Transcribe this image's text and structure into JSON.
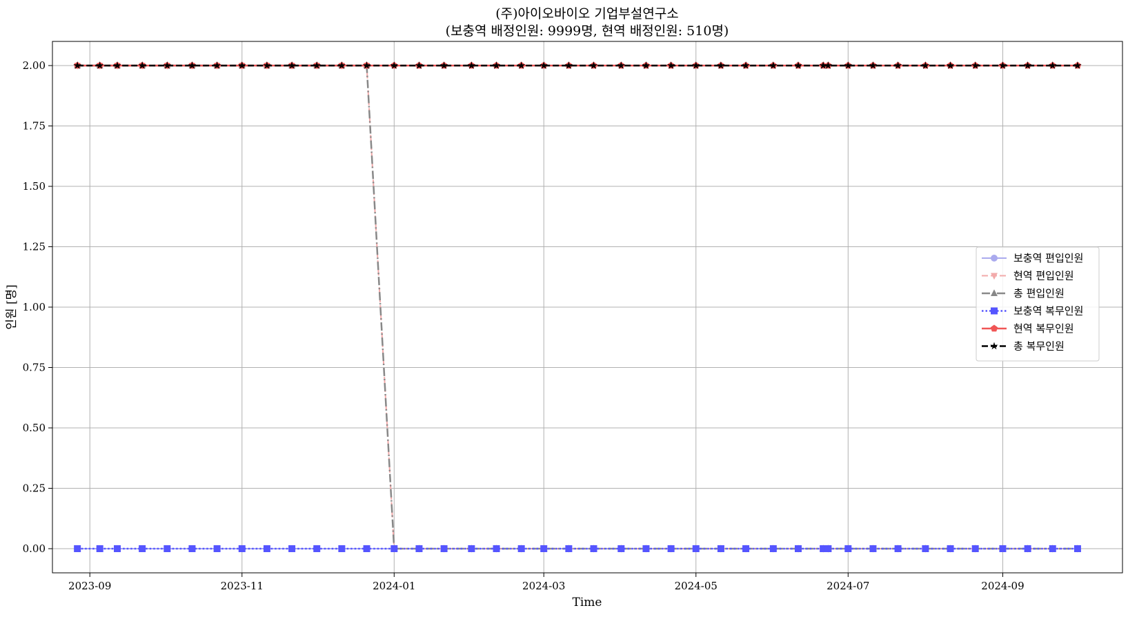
{
  "chart_data": {
    "type": "line",
    "title": "(주)아이오바이오 기업부설연구소",
    "subtitle": "(보충역 배정인원: 9999명, 현역 배정인원: 510명)",
    "xlabel": "Time",
    "ylabel": "인원 [명]",
    "x_ticks": [
      "2023-09",
      "2023-11",
      "2024-01",
      "2024-03",
      "2024-05",
      "2024-07",
      "2024-09"
    ],
    "y_ticks": [
      "0.00",
      "0.25",
      "0.50",
      "0.75",
      "1.00",
      "1.25",
      "1.50",
      "1.75",
      "2.00"
    ],
    "xlim": [
      "2023-08-17",
      "2024-10-19"
    ],
    "ylim": [
      -0.1,
      2.1
    ],
    "grid": true,
    "legend_position": "center-right",
    "x": [
      "2023-08-27",
      "2023-09-05",
      "2023-09-12",
      "2023-09-22",
      "2023-10-02",
      "2023-10-12",
      "2023-10-22",
      "2023-11-01",
      "2023-11-11",
      "2023-11-21",
      "2023-12-01",
      "2023-12-11",
      "2023-12-21",
      "2024-01-01",
      "2024-01-11",
      "2024-01-21",
      "2024-02-01",
      "2024-02-11",
      "2024-02-21",
      "2024-03-01",
      "2024-03-11",
      "2024-03-21",
      "2024-04-01",
      "2024-04-11",
      "2024-04-21",
      "2024-05-01",
      "2024-05-11",
      "2024-05-21",
      "2024-06-01",
      "2024-06-11",
      "2024-06-21",
      "2024-06-23",
      "2024-07-01",
      "2024-07-11",
      "2024-07-21",
      "2024-08-01",
      "2024-08-11",
      "2024-08-21",
      "2024-09-01",
      "2024-09-11",
      "2024-09-21",
      "2024-10-01"
    ],
    "series": [
      {
        "name": "보충역 편입인원",
        "color": "#aaaaee",
        "marker": "circle",
        "dash": "solid",
        "width": 2,
        "values": [
          0,
          0,
          0,
          0,
          0,
          0,
          0,
          0,
          0,
          0,
          0,
          0,
          0,
          0,
          0,
          0,
          0,
          0,
          0,
          0,
          0,
          0,
          0,
          0,
          0,
          0,
          0,
          0,
          0,
          0,
          0,
          0,
          0,
          0,
          0,
          0,
          0,
          0,
          0,
          0,
          0,
          0
        ]
      },
      {
        "name": "현역 편입인원",
        "color": "#f2aaaa",
        "marker": "triangle-down",
        "dash": "dashed",
        "width": 2,
        "values": [
          2,
          2,
          2,
          2,
          2,
          2,
          2,
          2,
          2,
          2,
          2,
          2,
          2,
          0,
          0,
          0,
          0,
          0,
          0,
          0,
          0,
          0,
          0,
          0,
          0,
          0,
          0,
          0,
          0,
          0,
          0,
          0,
          0,
          0,
          0,
          0,
          0,
          0,
          0,
          0,
          0,
          0
        ]
      },
      {
        "name": "총 편입인원",
        "color": "#888888",
        "marker": "triangle-up",
        "dash": "dashdot",
        "width": 2.5,
        "values": [
          2,
          2,
          2,
          2,
          2,
          2,
          2,
          2,
          2,
          2,
          2,
          2,
          2,
          0,
          0,
          0,
          0,
          0,
          0,
          0,
          0,
          0,
          0,
          0,
          0,
          0,
          0,
          0,
          0,
          0,
          0,
          0,
          0,
          0,
          0,
          0,
          0,
          0,
          0,
          0,
          0,
          0
        ]
      },
      {
        "name": "보충역 복무인원",
        "color": "#5555ff",
        "marker": "square",
        "dash": "dotted",
        "width": 2.5,
        "values": [
          0,
          0,
          0,
          0,
          0,
          0,
          0,
          0,
          0,
          0,
          0,
          0,
          0,
          0,
          0,
          0,
          0,
          0,
          0,
          0,
          0,
          0,
          0,
          0,
          0,
          0,
          0,
          0,
          0,
          0,
          0,
          0,
          0,
          0,
          0,
          0,
          0,
          0,
          0,
          0,
          0,
          0
        ]
      },
      {
        "name": "현역 복무인원",
        "color": "#f05555",
        "marker": "pentagon",
        "dash": "solid",
        "width": 2.5,
        "values": [
          2,
          2,
          2,
          2,
          2,
          2,
          2,
          2,
          2,
          2,
          2,
          2,
          2,
          2,
          2,
          2,
          2,
          2,
          2,
          2,
          2,
          2,
          2,
          2,
          2,
          2,
          2,
          2,
          2,
          2,
          2,
          2,
          2,
          2,
          2,
          2,
          2,
          2,
          2,
          2,
          2,
          2
        ]
      },
      {
        "name": "총 복무인원",
        "color": "#000000",
        "marker": "star",
        "dash": "dashed",
        "width": 2.5,
        "values": [
          2,
          2,
          2,
          2,
          2,
          2,
          2,
          2,
          2,
          2,
          2,
          2,
          2,
          2,
          2,
          2,
          2,
          2,
          2,
          2,
          2,
          2,
          2,
          2,
          2,
          2,
          2,
          2,
          2,
          2,
          2,
          2,
          2,
          2,
          2,
          2,
          2,
          2,
          2,
          2,
          2,
          2
        ]
      }
    ]
  }
}
